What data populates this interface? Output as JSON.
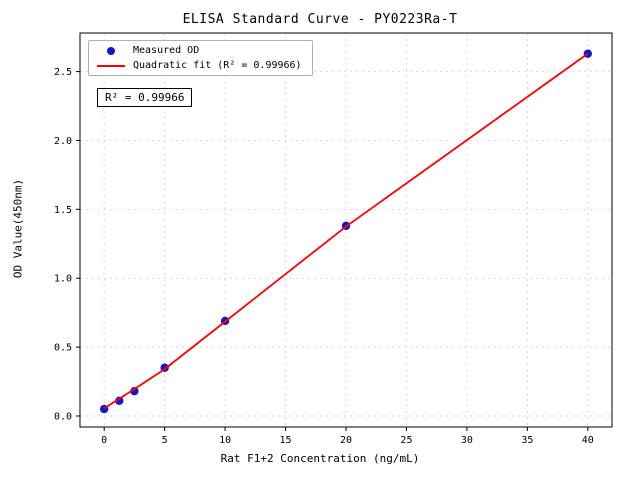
{
  "chart_data": {
    "type": "scatter",
    "title": "ELISA Standard Curve - PY0223Ra-T",
    "xlabel": "Rat F1+2 Concentration (ng/mL)",
    "ylabel": "OD Value(450nm)",
    "xlim": [
      -2,
      42
    ],
    "ylim": [
      -0.08,
      2.78
    ],
    "xticks": [
      0,
      5,
      10,
      15,
      20,
      25,
      30,
      35,
      40
    ],
    "yticks": [
      0.0,
      0.5,
      1.0,
      1.5,
      2.0,
      2.5
    ],
    "grid": true,
    "legend_position": "upper left",
    "series": [
      {
        "name": "Measured OD",
        "type": "scatter",
        "color": "#1414cc",
        "x": [
          0,
          1.25,
          2.5,
          5,
          10,
          20,
          40
        ],
        "y": [
          0.05,
          0.11,
          0.18,
          0.35,
          0.69,
          1.38,
          2.63
        ]
      },
      {
        "name": "Quadratic fit (R² = 0.99966)",
        "type": "line",
        "color": "#ff0000",
        "x": [
          0,
          1.25,
          2.5,
          5,
          10,
          20,
          40
        ],
        "y": [
          0.055,
          0.125,
          0.195,
          0.34,
          0.685,
          1.375,
          2.63
        ]
      }
    ],
    "annotation": "R² = 0.99966",
    "r_squared": 0.99966
  },
  "colors": {
    "grid": "#c8c8c8",
    "axis": "#000000",
    "background": "#ffffff"
  }
}
